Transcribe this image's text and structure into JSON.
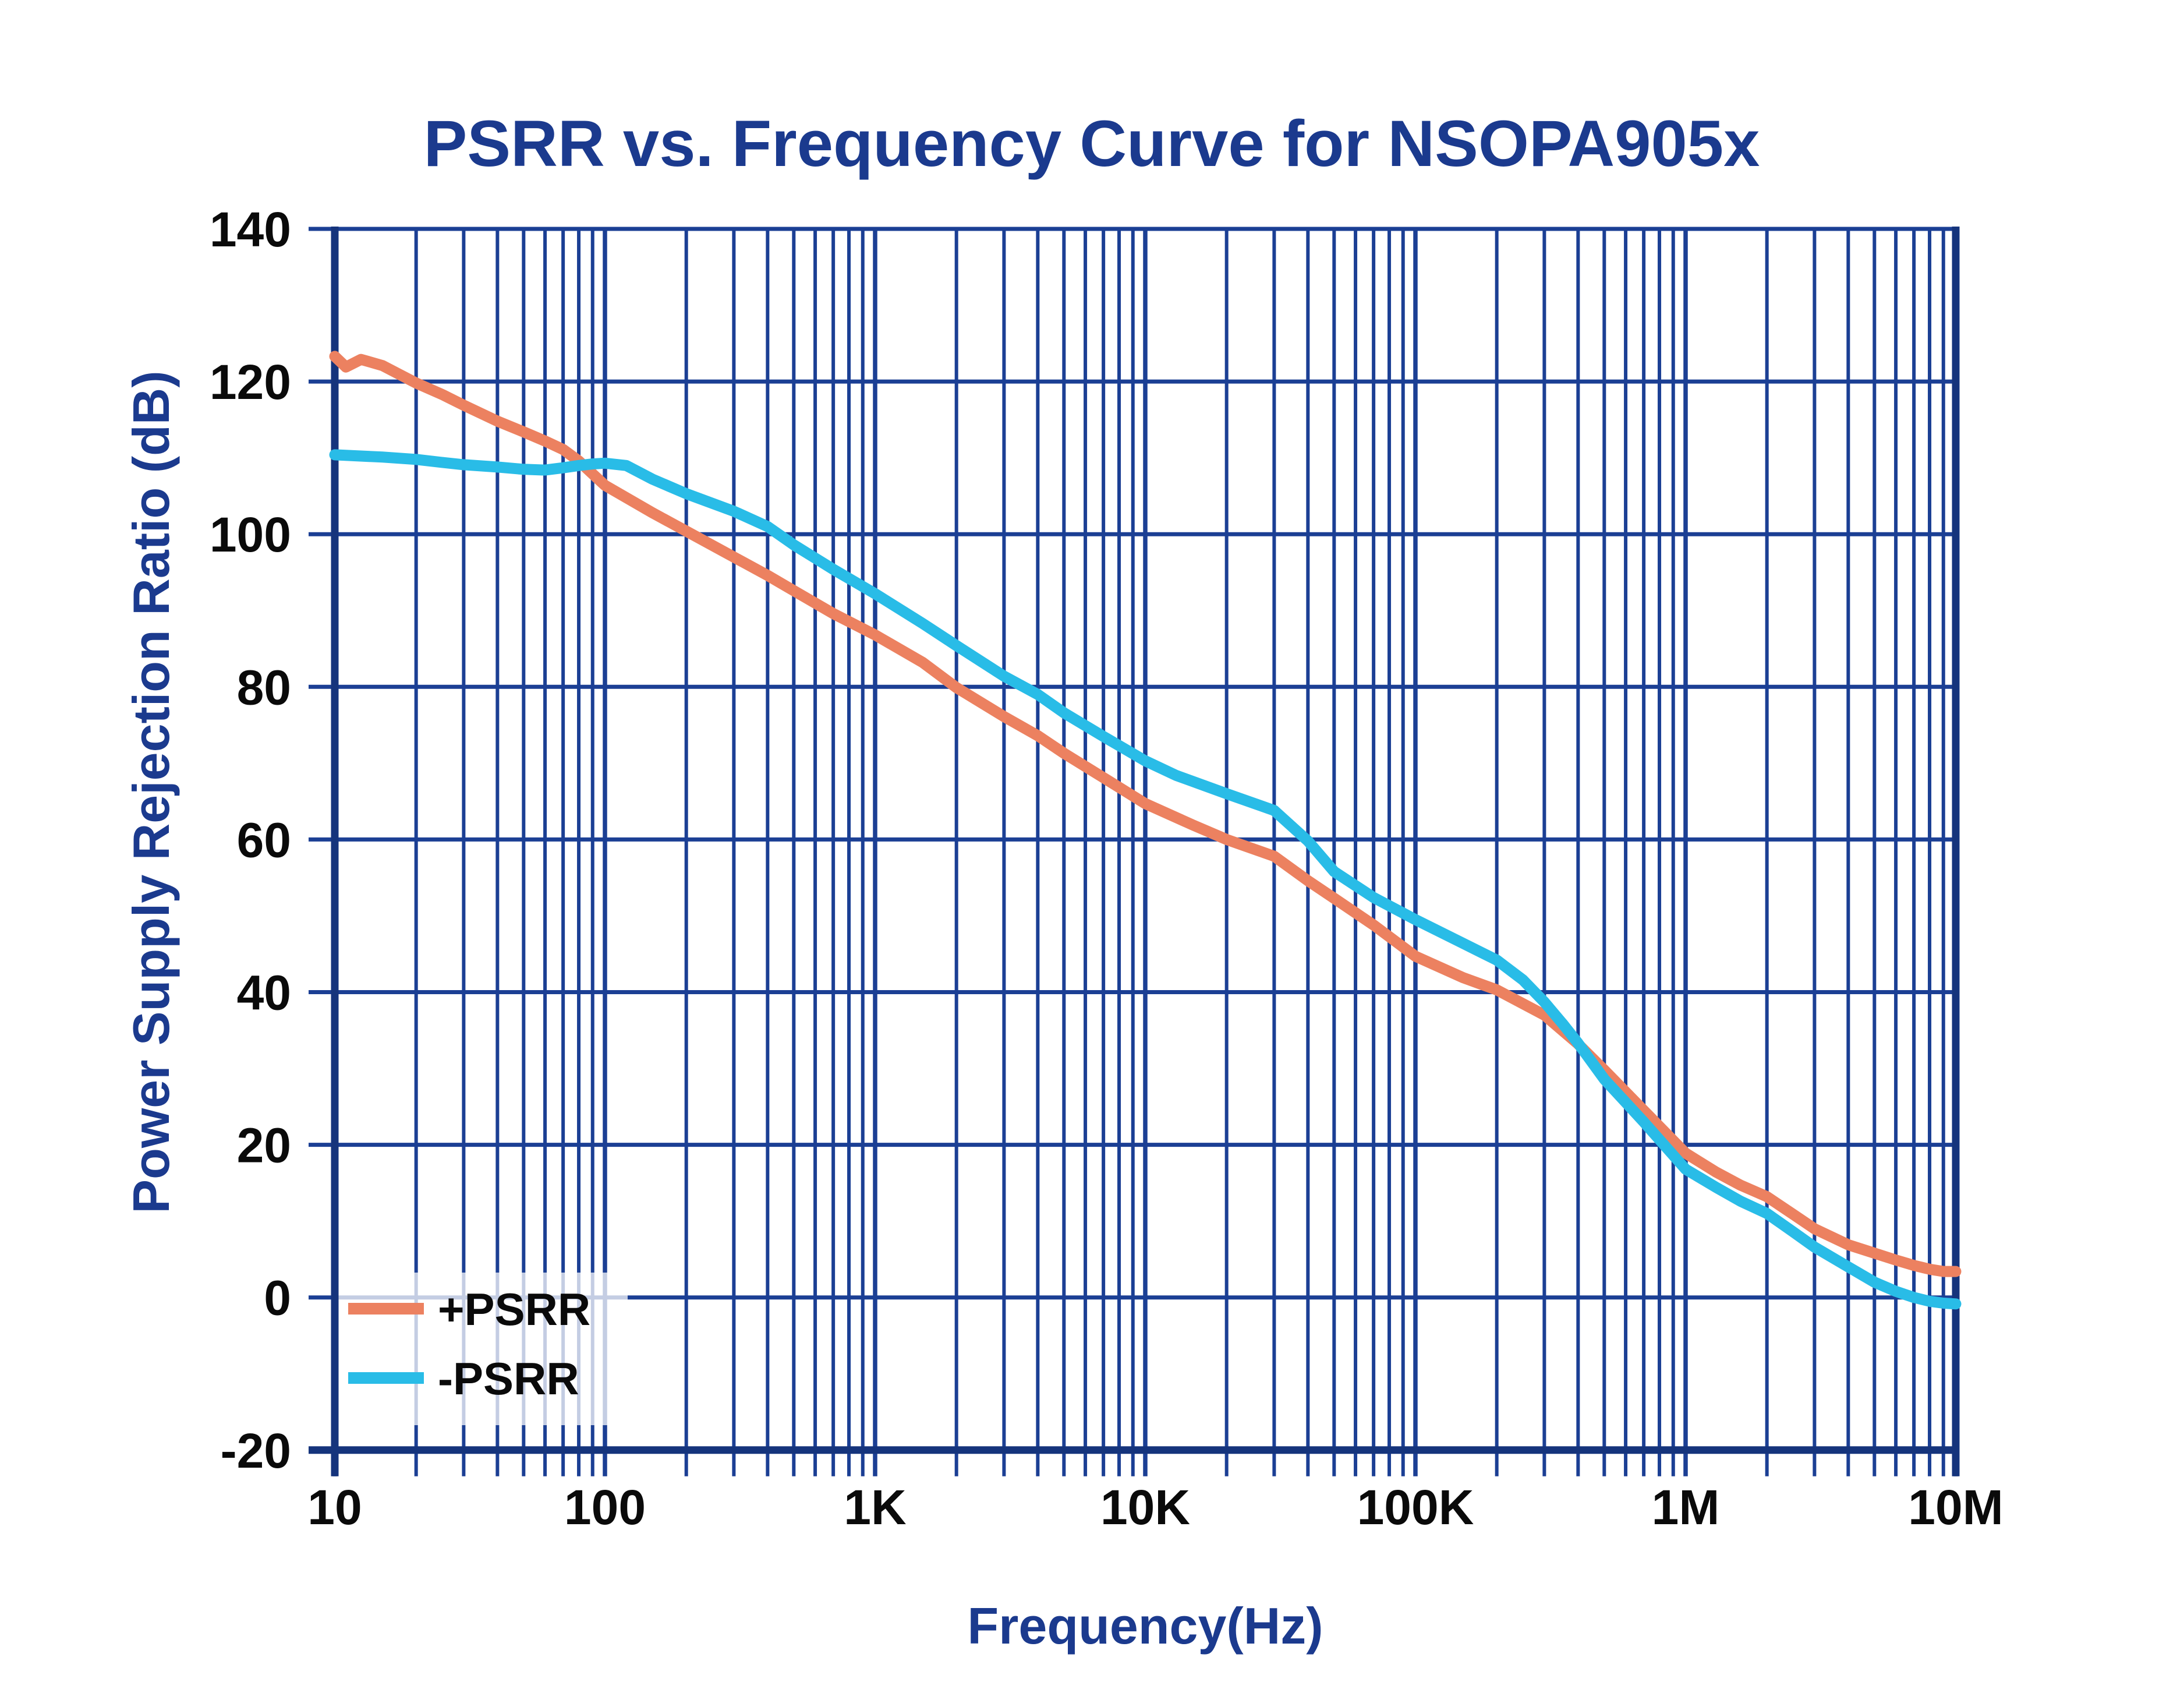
{
  "colors": {
    "background": "#ffffff",
    "grid": "#1B3F94",
    "axis_frame": "#15347C",
    "title_text": "#1B3A8E",
    "axis_label_text": "#1B3A8E",
    "tick_label_text": "#0A0A0A",
    "legend_text": "#0A0A0A",
    "plus_psrr": "#EC8160",
    "minus_psrr": "#29BCE7"
  },
  "chart_data": {
    "type": "line",
    "title": "PSRR vs. Frequency Curve for NSOPA905x",
    "xlabel": "Frequency(Hz)",
    "ylabel": "Power Supply Rejection Ratio (dB)",
    "x_scale": "log",
    "xlim": [
      10,
      10000000
    ],
    "ylim": [
      -20,
      140
    ],
    "y_tick_step": 20,
    "grid": "major-and-minor-log-grid",
    "legend_position": "bottom-left-inside",
    "x_ticks": [
      {
        "value": 10,
        "label": "10"
      },
      {
        "value": 100,
        "label": "100"
      },
      {
        "value": 1000,
        "label": "1K"
      },
      {
        "value": 10000,
        "label": "10K"
      },
      {
        "value": 100000,
        "label": "100K"
      },
      {
        "value": 1000000,
        "label": "1M"
      },
      {
        "value": 10000000,
        "label": "10M"
      }
    ],
    "y_ticks": [
      {
        "value": 140,
        "label": "140"
      },
      {
        "value": 120,
        "label": "120"
      },
      {
        "value": 100,
        "label": "100"
      },
      {
        "value": 80,
        "label": "80"
      },
      {
        "value": 60,
        "label": "60"
      },
      {
        "value": 40,
        "label": "40"
      },
      {
        "value": 20,
        "label": "20"
      },
      {
        "value": 0,
        "label": "0"
      },
      {
        "value": -20,
        "label": "-20"
      }
    ],
    "series": [
      {
        "id": "plus-psrr",
        "name": "+PSRR",
        "color": "#EC8160",
        "points": [
          [
            10,
            123.3
          ],
          [
            11,
            121.9
          ],
          [
            12.5,
            122.9
          ],
          [
            15,
            122.1
          ],
          [
            20,
            119.8
          ],
          [
            25,
            118.3
          ],
          [
            30,
            116.9
          ],
          [
            40,
            114.8
          ],
          [
            50,
            113.4
          ],
          [
            60,
            112.2
          ],
          [
            70,
            111.1
          ],
          [
            80,
            109.6
          ],
          [
            90,
            107.9
          ],
          [
            100,
            106.4
          ],
          [
            150,
            102.8
          ],
          [
            200,
            100.4
          ],
          [
            300,
            97.0
          ],
          [
            400,
            94.6
          ],
          [
            500,
            92.6
          ],
          [
            700,
            89.6
          ],
          [
            1000,
            86.8
          ],
          [
            1500,
            83.2
          ],
          [
            2000,
            79.9
          ],
          [
            3000,
            76.1
          ],
          [
            4000,
            73.6
          ],
          [
            5000,
            71.3
          ],
          [
            7000,
            68.1
          ],
          [
            10000,
            64.7
          ],
          [
            15000,
            61.9
          ],
          [
            20000,
            60.0
          ],
          [
            30000,
            57.8
          ],
          [
            40000,
            54.6
          ],
          [
            50000,
            52.3
          ],
          [
            70000,
            48.8
          ],
          [
            100000,
            44.7
          ],
          [
            150000,
            41.9
          ],
          [
            200000,
            40.3
          ],
          [
            300000,
            37.0
          ],
          [
            400000,
            33.2
          ],
          [
            500000,
            29.8
          ],
          [
            700000,
            24.5
          ],
          [
            1000000,
            18.9
          ],
          [
            1300000,
            16.4
          ],
          [
            1600000,
            14.7
          ],
          [
            2000000,
            13.2
          ],
          [
            2500000,
            10.9
          ],
          [
            3000000,
            9.0
          ],
          [
            4000000,
            6.9
          ],
          [
            5000000,
            5.8
          ],
          [
            6000000,
            4.9
          ],
          [
            7000000,
            4.2
          ],
          [
            8000000,
            3.7
          ],
          [
            9000000,
            3.4
          ],
          [
            10000000,
            3.4
          ]
        ]
      },
      {
        "id": "minus-psrr",
        "name": "-PSRR",
        "color": "#29BCE7",
        "points": [
          [
            10,
            110.4
          ],
          [
            15,
            110.1
          ],
          [
            20,
            109.8
          ],
          [
            25,
            109.4
          ],
          [
            30,
            109.1
          ],
          [
            40,
            108.8
          ],
          [
            50,
            108.5
          ],
          [
            60,
            108.4
          ],
          [
            70,
            108.7
          ],
          [
            80,
            109.0
          ],
          [
            90,
            109.2
          ],
          [
            100,
            109.3
          ],
          [
            120,
            109.0
          ],
          [
            150,
            107.2
          ],
          [
            200,
            105.3
          ],
          [
            300,
            103.0
          ],
          [
            400,
            101.0
          ],
          [
            500,
            98.6
          ],
          [
            700,
            95.4
          ],
          [
            1000,
            92.2
          ],
          [
            1500,
            88.3
          ],
          [
            2000,
            85.4
          ],
          [
            3000,
            81.4
          ],
          [
            4000,
            79.0
          ],
          [
            5000,
            76.6
          ],
          [
            7000,
            73.5
          ],
          [
            10000,
            70.3
          ],
          [
            13000,
            68.4
          ],
          [
            20000,
            66.0
          ],
          [
            30000,
            63.8
          ],
          [
            40000,
            59.8
          ],
          [
            50000,
            55.8
          ],
          [
            70000,
            52.4
          ],
          [
            100000,
            49.5
          ],
          [
            150000,
            46.4
          ],
          [
            200000,
            44.2
          ],
          [
            250000,
            41.6
          ],
          [
            300000,
            38.7
          ],
          [
            350000,
            35.9
          ],
          [
            400000,
            33.3
          ],
          [
            500000,
            28.6
          ],
          [
            700000,
            23.0
          ],
          [
            1000000,
            16.8
          ],
          [
            1300000,
            14.4
          ],
          [
            1600000,
            12.6
          ],
          [
            2000000,
            11.0
          ],
          [
            2500000,
            8.6
          ],
          [
            3000000,
            6.6
          ],
          [
            4000000,
            4.0
          ],
          [
            5000000,
            2.0
          ],
          [
            6000000,
            0.8
          ],
          [
            7000000,
            0.0
          ],
          [
            8000000,
            -0.5
          ],
          [
            9000000,
            -0.75
          ],
          [
            10000000,
            -0.85
          ]
        ]
      }
    ]
  }
}
